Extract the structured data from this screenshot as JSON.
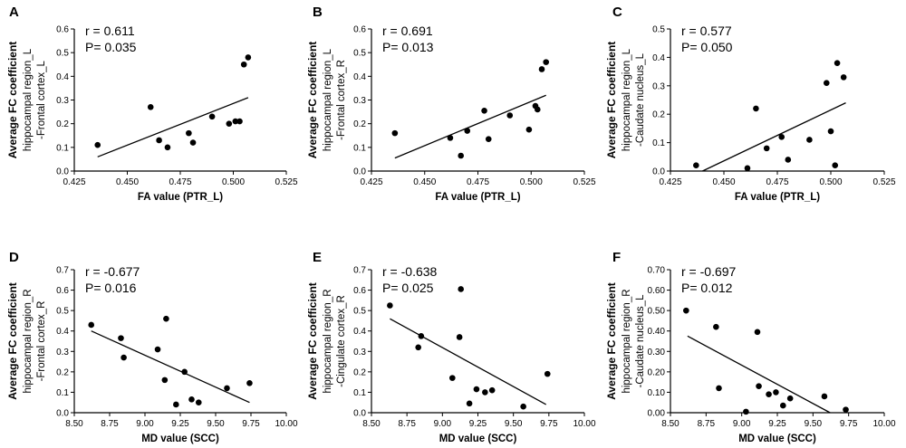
{
  "chart_data": [
    {
      "type": "scatter",
      "panel": "A",
      "xlabel": "FA value (PTR_L)",
      "ylabel": [
        "Average FC coefficient",
        "hippocampal region_L",
        "-Frontal cortex_L"
      ],
      "stats": [
        "r = 0.611",
        "P= 0.035"
      ],
      "xlim": [
        0.425,
        0.525
      ],
      "ylim": [
        0.0,
        0.6
      ],
      "xticks": [
        "0.425",
        "0.450",
        "0.475",
        "0.500",
        "0.525"
      ],
      "yticks": [
        "0.0",
        "0.1",
        "0.2",
        "0.3",
        "0.4",
        "0.5",
        "0.6"
      ],
      "x": [
        0.436,
        0.461,
        0.465,
        0.469,
        0.479,
        0.481,
        0.49,
        0.498,
        0.501,
        0.503,
        0.505,
        0.507
      ],
      "y": [
        0.11,
        0.27,
        0.13,
        0.1,
        0.16,
        0.12,
        0.23,
        0.2,
        0.21,
        0.21,
        0.45,
        0.48
      ],
      "fit": [
        [
          0.436,
          0.06
        ],
        [
          0.507,
          0.31
        ]
      ]
    },
    {
      "type": "scatter",
      "panel": "B",
      "xlabel": "FA value (PTR_L)",
      "ylabel": [
        "Average FC coefficient",
        "hippocampal region_L",
        "-Frontal cortex_R"
      ],
      "stats": [
        "r = 0.691",
        "P= 0.013"
      ],
      "xlim": [
        0.425,
        0.525
      ],
      "ylim": [
        0.0,
        0.6
      ],
      "xticks": [
        "0.425",
        "0.450",
        "0.475",
        "0.500",
        "0.525"
      ],
      "yticks": [
        "0.0",
        "0.1",
        "0.2",
        "0.3",
        "0.4",
        "0.5",
        "0.6"
      ],
      "x": [
        0.436,
        0.462,
        0.467,
        0.47,
        0.478,
        0.48,
        0.49,
        0.499,
        0.502,
        0.503,
        0.505,
        0.507
      ],
      "y": [
        0.16,
        0.14,
        0.065,
        0.17,
        0.255,
        0.135,
        0.235,
        0.175,
        0.275,
        0.26,
        0.43,
        0.46
      ],
      "fit": [
        [
          0.436,
          0.055
        ],
        [
          0.507,
          0.32
        ]
      ]
    },
    {
      "type": "scatter",
      "panel": "C",
      "xlabel": "FA value (PTR_L)",
      "ylabel": [
        "Average FC coefficient",
        "hippocampal region_L",
        "-Caudate nucleus_L"
      ],
      "stats": [
        "r = 0.577",
        "P= 0.050"
      ],
      "xlim": [
        0.425,
        0.525
      ],
      "ylim": [
        0.0,
        0.5
      ],
      "xticks": [
        "0.425",
        "0.450",
        "0.475",
        "0.500",
        "0.525"
      ],
      "yticks": [
        "0.0",
        "0.1",
        "0.2",
        "0.3",
        "0.4",
        "0.5"
      ],
      "x": [
        0.437,
        0.461,
        0.465,
        0.47,
        0.477,
        0.48,
        0.49,
        0.498,
        0.5,
        0.502,
        0.503,
        0.506
      ],
      "y": [
        0.02,
        0.01,
        0.22,
        0.08,
        0.12,
        0.04,
        0.11,
        0.31,
        0.14,
        0.02,
        0.38,
        0.33
      ],
      "fit": [
        [
          0.44,
          0.0
        ],
        [
          0.507,
          0.24
        ]
      ]
    },
    {
      "type": "scatter",
      "panel": "D",
      "xlabel": "MD value (SCC)",
      "ylabel": [
        "Average FC coefficient",
        "hippocampal region_R",
        "-Frontal cortex_R"
      ],
      "stats": [
        "r = -0.677",
        "P= 0.016"
      ],
      "xlim": [
        8.5,
        10.0
      ],
      "ylim": [
        0.0,
        0.7
      ],
      "xticks": [
        "8.50",
        "8.75",
        "9.00",
        "9.25",
        "9.50",
        "9.75",
        "10.00"
      ],
      "yticks": [
        "0.0",
        "0.1",
        "0.2",
        "0.3",
        "0.4",
        "0.5",
        "0.6",
        "0.7"
      ],
      "x": [
        8.62,
        8.83,
        8.85,
        9.09,
        9.15,
        9.14,
        9.22,
        9.28,
        9.33,
        9.38,
        9.58,
        9.74
      ],
      "y": [
        0.43,
        0.365,
        0.27,
        0.31,
        0.46,
        0.16,
        0.04,
        0.2,
        0.065,
        0.05,
        0.12,
        0.145
      ],
      "fit": [
        [
          8.62,
          0.4
        ],
        [
          9.74,
          0.05
        ]
      ]
    },
    {
      "type": "scatter",
      "panel": "E",
      "xlabel": "MD value (SCC)",
      "ylabel": [
        "Average FC coefficient",
        "hippocampal region_R",
        "-Cingulate cortex_R"
      ],
      "stats": [
        "r = -0.638",
        "P= 0.025"
      ],
      "xlim": [
        8.5,
        10.0
      ],
      "ylim": [
        0.0,
        0.7
      ],
      "xticks": [
        "8.50",
        "8.75",
        "9.00",
        "9.25",
        "9.50",
        "9.75",
        "10.00"
      ],
      "yticks": [
        "0.0",
        "0.1",
        "0.2",
        "0.3",
        "0.4",
        "0.5",
        "0.6",
        "0.7"
      ],
      "x": [
        8.63,
        8.83,
        8.85,
        9.07,
        9.12,
        9.13,
        9.19,
        9.24,
        9.3,
        9.35,
        9.57,
        9.74
      ],
      "y": [
        0.525,
        0.32,
        0.375,
        0.17,
        0.37,
        0.605,
        0.045,
        0.115,
        0.1,
        0.11,
        0.03,
        0.19
      ],
      "fit": [
        [
          8.63,
          0.46
        ],
        [
          9.73,
          0.04
        ]
      ]
    },
    {
      "type": "scatter",
      "panel": "F",
      "xlabel": "MD value (SCC)",
      "ylabel": [
        "Average FC coefficient",
        "hippocampal region_R",
        "-Caudate nucleus_L"
      ],
      "stats": [
        "r = -0.697",
        "P= 0.012"
      ],
      "xlim": [
        8.5,
        10.0
      ],
      "ylim": [
        0.0,
        0.7
      ],
      "xticks": [
        "8.50",
        "8.75",
        "9.00",
        "9.25",
        "9.50",
        "9.75",
        "10.00"
      ],
      "yticks": [
        "0.00",
        "0.10",
        "0.20",
        "0.30",
        "0.40",
        "0.50",
        "0.60",
        "0.70"
      ],
      "x": [
        8.61,
        8.82,
        8.84,
        9.03,
        9.11,
        9.12,
        9.19,
        9.24,
        9.29,
        9.34,
        9.58,
        9.73
      ],
      "y": [
        0.5,
        0.42,
        0.12,
        0.005,
        0.395,
        0.13,
        0.09,
        0.1,
        0.035,
        0.07,
        0.08,
        0.015
      ],
      "fit": [
        [
          8.62,
          0.375
        ],
        [
          9.62,
          0.0
        ]
      ]
    }
  ]
}
